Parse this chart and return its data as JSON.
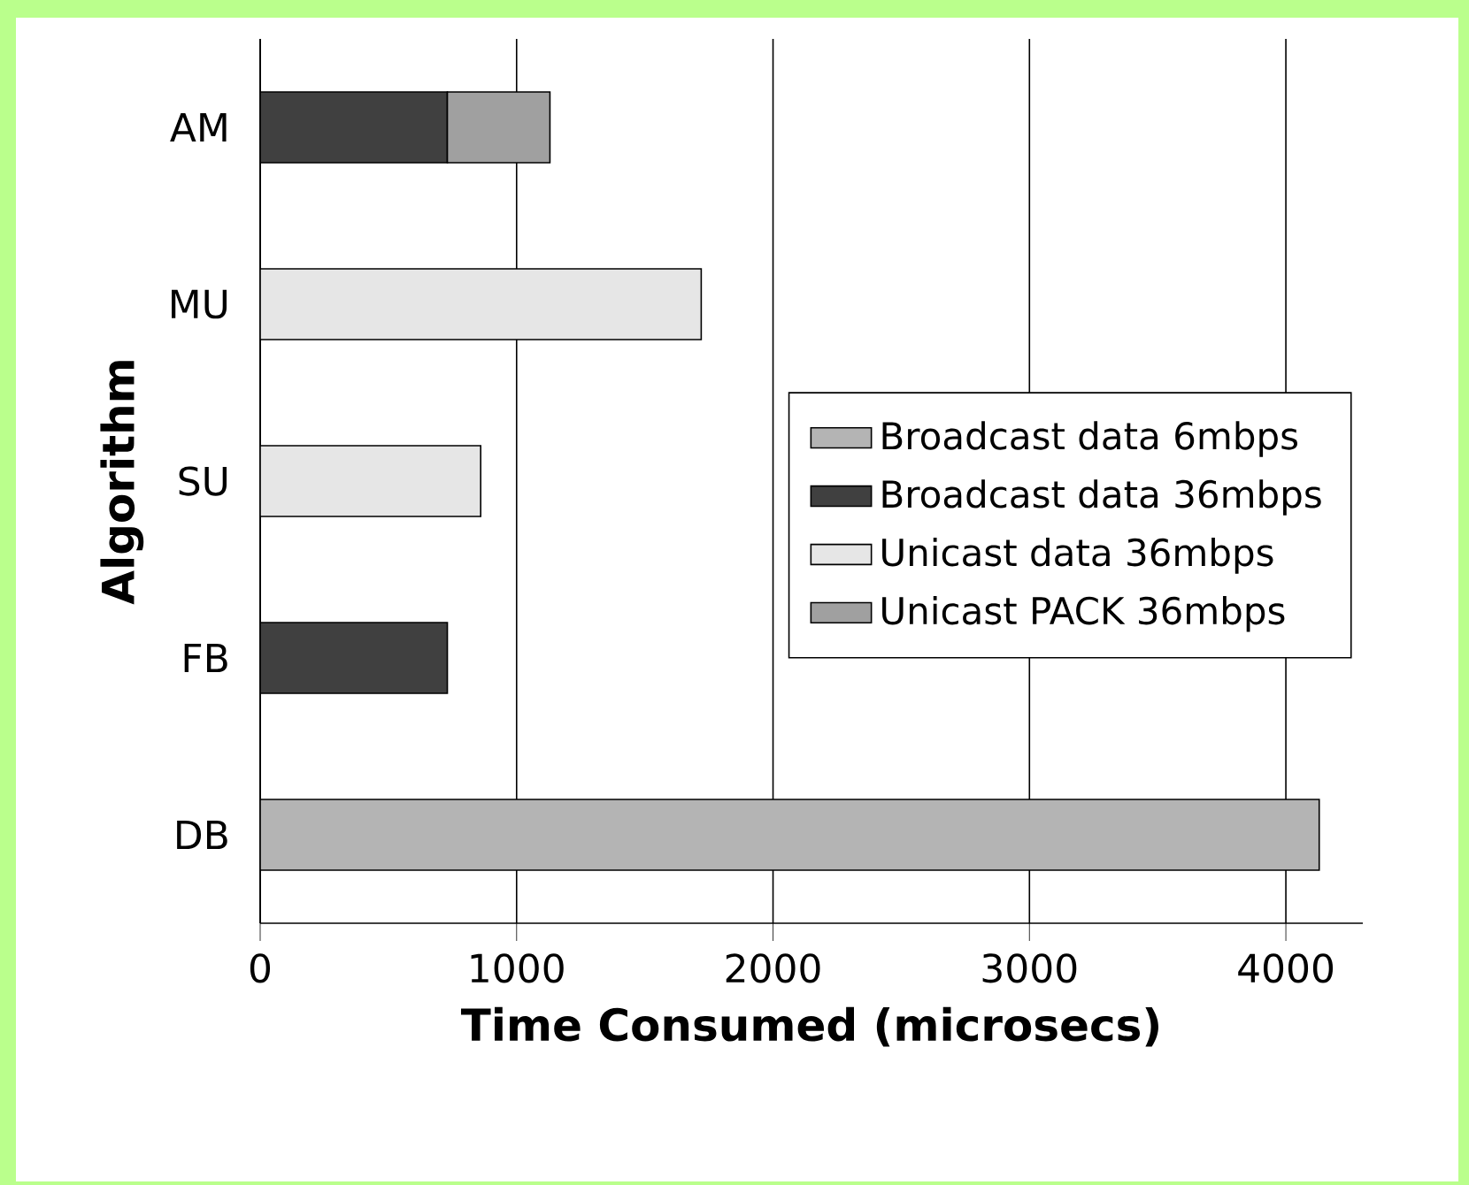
{
  "chart_data": {
    "type": "bar",
    "orientation": "horizontal",
    "stacked": true,
    "xlabel": "Time Consumed (microsecs)",
    "ylabel": "Algorithm",
    "categories": [
      "AM",
      "MU",
      "SU",
      "FB",
      "DB"
    ],
    "series": [
      {
        "name": "Broadcast data 6mbps",
        "color": "#b4b4b4",
        "values": [
          null,
          null,
          null,
          null,
          4130
        ]
      },
      {
        "name": "Broadcast data 36mbps",
        "color": "#404040",
        "values": [
          730,
          null,
          null,
          730,
          null
        ]
      },
      {
        "name": "Unicast data 36mbps",
        "color": "#e6e6e6",
        "values": [
          null,
          1720,
          860,
          null,
          null
        ]
      },
      {
        "name": "Unicast PACK 36mbps",
        "color": "#a0a0a0",
        "values": [
          400,
          null,
          null,
          null,
          null
        ]
      }
    ],
    "xlim": [
      0,
      4300
    ],
    "xticks": [
      0,
      1000,
      2000,
      3000,
      4000
    ],
    "grid": "x",
    "legend": "right"
  }
}
